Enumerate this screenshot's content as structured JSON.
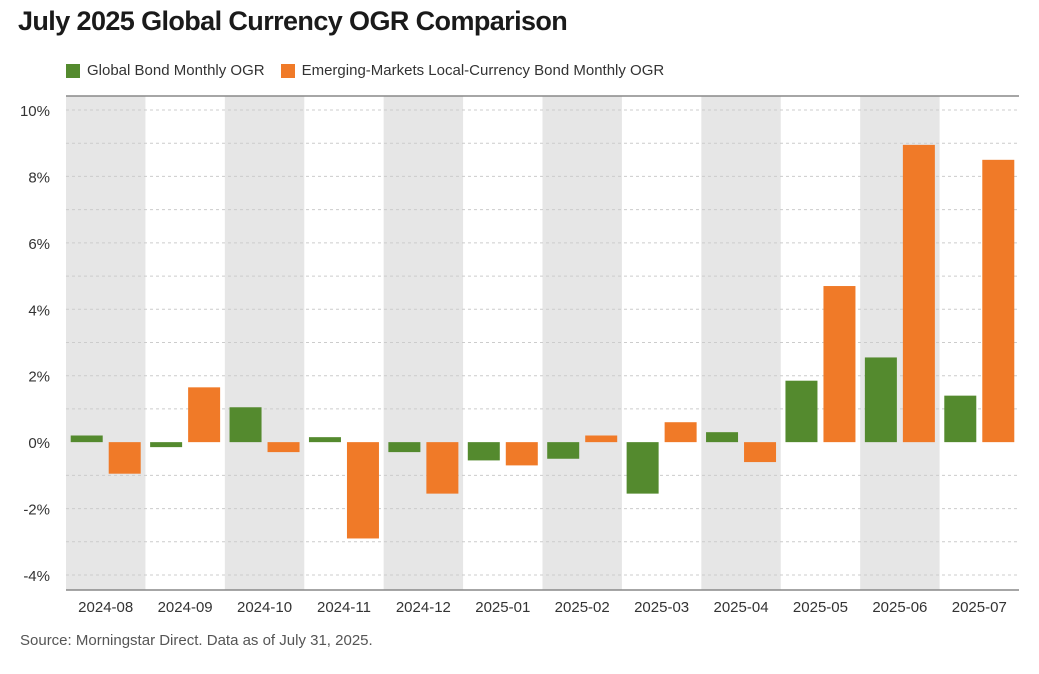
{
  "title": "July 2025 Global Currency OGR Comparison",
  "source": "Source: Morningstar Direct. Data as of July 31, 2025.",
  "colors": {
    "series1": "#548a2e",
    "series2": "#f07a28",
    "band": "#e6e6e6",
    "axis": "#888888",
    "grid": "#cccccc"
  },
  "chart_data": {
    "type": "bar",
    "title": "July 2025 Global Currency OGR Comparison",
    "xlabel": "",
    "ylabel": "",
    "categories": [
      "2024-08",
      "2024-09",
      "2024-10",
      "2024-11",
      "2024-12",
      "2025-01",
      "2025-02",
      "2025-03",
      "2025-04",
      "2025-05",
      "2025-06",
      "2025-07"
    ],
    "series": [
      {
        "name": "Global Bond Monthly OGR",
        "values": [
          0.2,
          -0.15,
          1.05,
          0.15,
          -0.3,
          -0.55,
          -0.5,
          -1.55,
          0.3,
          1.85,
          2.55,
          1.4
        ]
      },
      {
        "name": "Emerging-Markets Local-Currency Bond Monthly OGR",
        "values": [
          -0.95,
          1.65,
          -0.3,
          -2.9,
          -1.55,
          -0.7,
          0.2,
          0.6,
          -0.6,
          4.7,
          8.95,
          8.5
        ]
      }
    ],
    "ylim": [
      -4,
      10
    ],
    "yticks": [
      -4,
      -2,
      0,
      2,
      4,
      6,
      8,
      10
    ],
    "ytick_labels": [
      "-4%",
      "-2%",
      "0%",
      "2%",
      "4%",
      "6%",
      "8%",
      "10%"
    ],
    "grid": true,
    "legend": "top-left"
  }
}
